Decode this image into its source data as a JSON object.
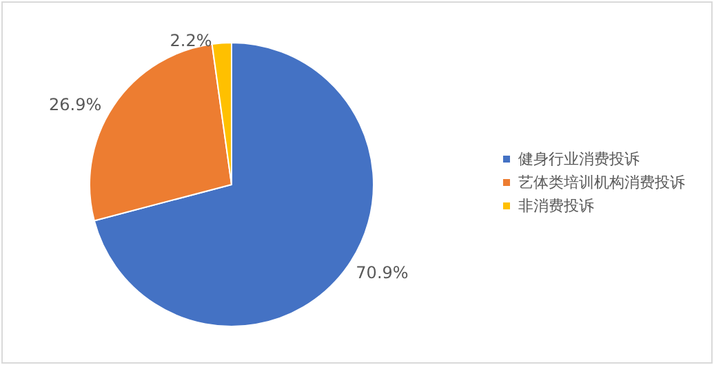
{
  "chart_data": {
    "type": "pie",
    "categories": [
      "健身行业消费投诉",
      "艺体类培训机构消费投诉",
      "非消费投诉"
    ],
    "values": [
      70.9,
      26.9,
      2.2
    ],
    "colors": [
      "#4472c4",
      "#ed7d31",
      "#ffc000"
    ],
    "value_labels": [
      "70.9%",
      "26.9%",
      "2.2%"
    ],
    "legend": "right"
  }
}
